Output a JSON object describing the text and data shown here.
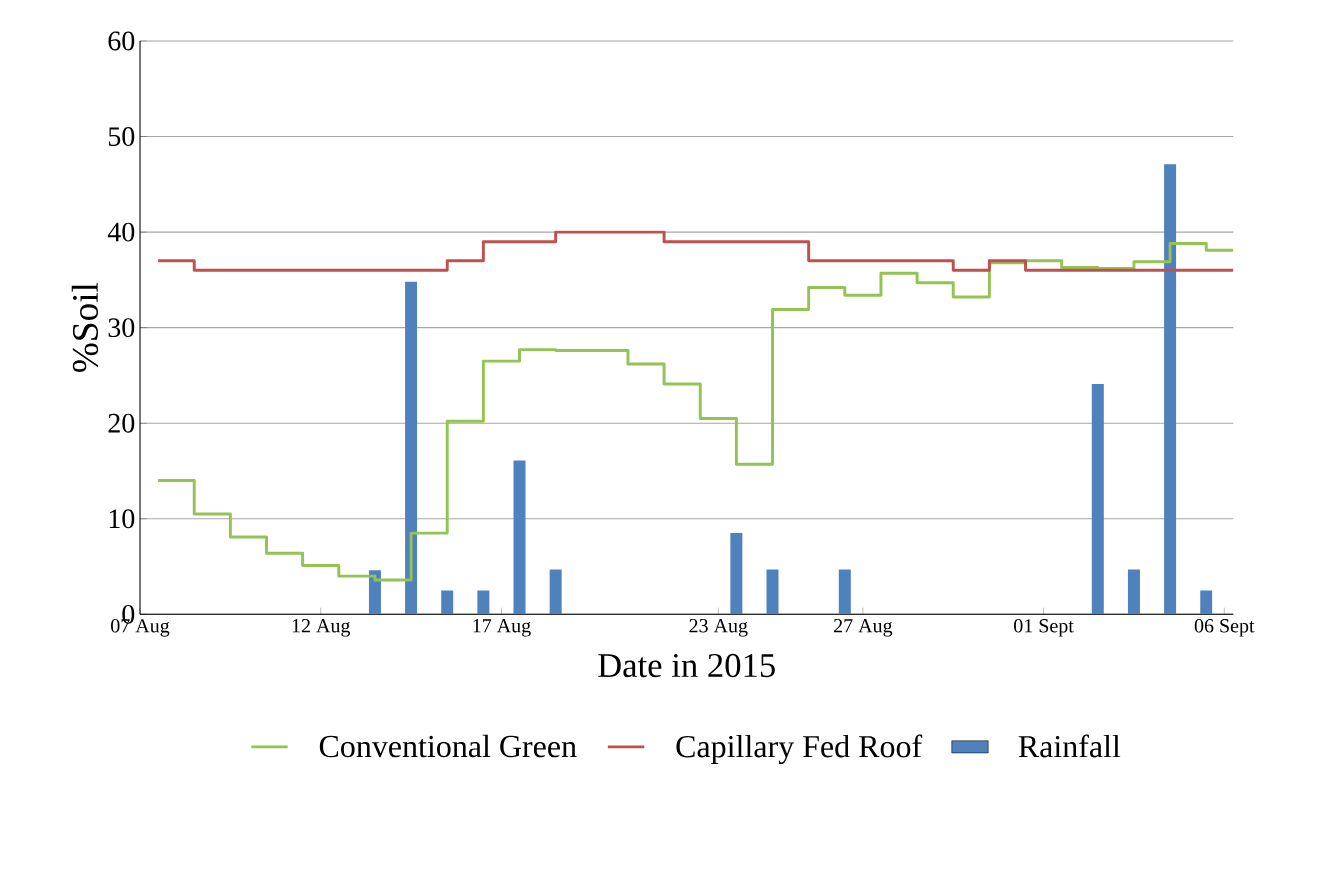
{
  "chart_data": {
    "type": "step",
    "xlabel": "Date in 2015",
    "ylabel": "%Soil",
    "xlim": [
      "2015-08-07",
      "2015-09-06T06:00"
    ],
    "xticks": [
      {
        "value": "2015-08-07",
        "label": "07 Aug"
      },
      {
        "value": "2015-08-12",
        "label": "12 Aug"
      },
      {
        "value": "2015-08-17",
        "label": "17 Aug"
      },
      {
        "value": "2015-08-23",
        "label": "23 Aug"
      },
      {
        "value": "2015-08-27",
        "label": "27 Aug"
      },
      {
        "value": "2015-09-01",
        "label": "01 Sept"
      },
      {
        "value": "2015-09-06",
        "label": "06 Sept"
      }
    ],
    "ylim": [
      0,
      60
    ],
    "yticks": [
      0,
      10,
      20,
      30,
      40,
      50,
      60
    ],
    "grid": "y",
    "legend": "bottom",
    "series": [
      {
        "name": "Conventional Green",
        "color": "#92c353",
        "x": [
          "2015-08-07T12:00",
          "2015-08-08T12:00",
          "2015-08-09T12:00",
          "2015-08-10T12:00",
          "2015-08-11T12:00",
          "2015-08-12T12:00",
          "2015-08-13T12:00",
          "2015-08-14T12:00",
          "2015-08-15T12:00",
          "2015-08-16T12:00",
          "2015-08-17T12:00",
          "2015-08-18T12:00",
          "2015-08-19T12:00",
          "2015-08-20T12:00",
          "2015-08-21T12:00",
          "2015-08-22T12:00",
          "2015-08-23T12:00",
          "2015-08-24T12:00",
          "2015-08-25T12:00",
          "2015-08-26T12:00",
          "2015-08-27T12:00",
          "2015-08-28T12:00",
          "2015-08-29T12:00",
          "2015-08-30T12:00",
          "2015-08-31T12:00",
          "2015-09-01T12:00",
          "2015-09-02T12:00",
          "2015-09-03T12:00",
          "2015-09-04T12:00",
          "2015-09-05T12:00",
          "2015-09-06T06:00"
        ],
        "values": [
          14,
          10.5,
          8.1,
          6.4,
          5.1,
          4.0,
          3.6,
          8.5,
          20.2,
          26.5,
          27.7,
          27.6,
          27.6,
          26.2,
          24.1,
          20.5,
          15.7,
          31.9,
          34.2,
          33.4,
          35.7,
          34.7,
          33.2,
          36.8,
          37.0,
          36.3,
          36.2,
          36.9,
          38.8,
          38.1,
          38.1
        ]
      },
      {
        "name": "Capillary Fed Roof",
        "color": "#c0504d",
        "x": [
          "2015-08-07T12:00",
          "2015-08-08T12:00",
          "2015-08-15T12:00",
          "2015-08-16T12:00",
          "2015-08-18T12:00",
          "2015-08-21T12:00",
          "2015-08-25T12:00",
          "2015-08-29T12:00",
          "2015-08-30T12:00",
          "2015-08-31T12:00",
          "2015-09-06T06:00"
        ],
        "values": [
          37,
          36,
          37,
          39,
          40,
          39,
          37,
          36,
          37,
          36,
          36
        ]
      },
      {
        "name": "Rainfall",
        "type": "bar",
        "color": "#4f81bd",
        "x": [
          "2015-08-13T12:00",
          "2015-08-14T12:00",
          "2015-08-15T12:00",
          "2015-08-16T12:00",
          "2015-08-17T12:00",
          "2015-08-18T12:00",
          "2015-08-23T12:00",
          "2015-08-24T12:00",
          "2015-08-26T12:00",
          "2015-09-02T12:00",
          "2015-09-03T12:00",
          "2015-09-04T12:00",
          "2015-09-05T12:00"
        ],
        "values": [
          4.6,
          34.8,
          2.5,
          2.5,
          16.1,
          4.7,
          8.5,
          4.7,
          4.7,
          24.1,
          4.7,
          47.1,
          2.5
        ]
      }
    ]
  }
}
